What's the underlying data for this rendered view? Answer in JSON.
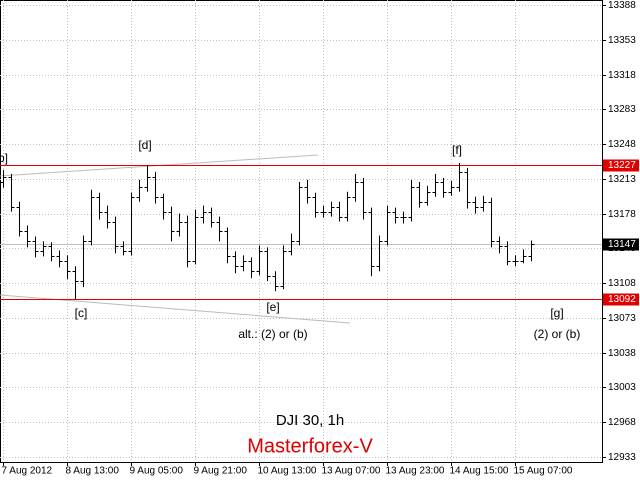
{
  "chart_data": {
    "type": "ohlc",
    "title": "DJI 30, 1h",
    "subtitle": "Masterforex-V",
    "categories": [
      "7 Aug 2012",
      null,
      null,
      null,
      null,
      null,
      null,
      null,
      "8 Aug 13:00",
      null,
      null,
      null,
      null,
      null,
      null,
      null,
      "9 Aug 05:00",
      null,
      null,
      null,
      null,
      null,
      null,
      null,
      "9 Aug 21:00",
      null,
      null,
      null,
      null,
      null,
      null,
      null,
      "10 Aug 13:00",
      null,
      null,
      null,
      null,
      null,
      null,
      null,
      "13 Aug 07:00",
      null,
      null,
      null,
      null,
      null,
      null,
      null,
      "13 Aug 23:00",
      null,
      null,
      null,
      null,
      null,
      null,
      null,
      "14 Aug 15:00",
      null,
      null,
      null,
      null,
      null,
      null,
      null,
      "15 Aug 07:00",
      null,
      null
    ],
    "open": [
      13210,
      13215,
      13185,
      13160,
      13150,
      13140,
      13145,
      13135,
      13130,
      13120,
      13110,
      13150,
      13195,
      13180,
      13170,
      13145,
      13140,
      13195,
      13205,
      13215,
      13195,
      13180,
      13160,
      13170,
      13130,
      13175,
      13180,
      13170,
      13160,
      13135,
      13125,
      13130,
      13120,
      13140,
      13115,
      13105,
      13140,
      13150,
      13205,
      13195,
      13180,
      13180,
      13185,
      13175,
      13195,
      13210,
      13180,
      13125,
      13150,
      13180,
      13175,
      13175,
      13205,
      13190,
      13200,
      13210,
      13200,
      13205,
      13220,
      13190,
      13185,
      13190,
      13150,
      13145,
      13130,
      13130,
      13135
    ],
    "high": [
      13222,
      13218,
      13190,
      13166,
      13155,
      13150,
      13149,
      13141,
      13136,
      13125,
      13156,
      13202,
      13199,
      13186,
      13175,
      13150,
      13199,
      13212,
      13227,
      13220,
      13198,
      13185,
      13178,
      13176,
      13182,
      13186,
      13184,
      13175,
      13164,
      13140,
      13136,
      13134,
      13146,
      13144,
      13120,
      13146,
      13158,
      13210,
      13212,
      13199,
      13186,
      13190,
      13190,
      13200,
      13218,
      13214,
      13184,
      13156,
      13186,
      13184,
      13180,
      13212,
      13210,
      13206,
      13218,
      13214,
      13211,
      13229,
      13224,
      13195,
      13196,
      13194,
      13155,
      13150,
      13136,
      13142,
      13151
    ],
    "low": [
      13204,
      13180,
      13155,
      13144,
      13134,
      13135,
      13130,
      13124,
      13112,
      13092,
      13104,
      13146,
      13172,
      13163,
      13138,
      13136,
      13136,
      13190,
      13200,
      13188,
      13172,
      13150,
      13155,
      13124,
      13127,
      13168,
      13164,
      13150,
      13128,
      13118,
      13120,
      13113,
      13116,
      13110,
      13100,
      13102,
      13136,
      13146,
      13188,
      13174,
      13174,
      13175,
      13170,
      13170,
      13190,
      13172,
      13115,
      13120,
      13146,
      13168,
      13168,
      13170,
      13184,
      13186,
      13195,
      13194,
      13196,
      13200,
      13183,
      13178,
      13180,
      13144,
      13138,
      13126,
      13125,
      13128,
      13130
    ],
    "close": [
      13215,
      13185,
      13160,
      13150,
      13140,
      13145,
      13135,
      13130,
      13120,
      13110,
      13150,
      13195,
      13180,
      13170,
      13145,
      13140,
      13195,
      13205,
      13215,
      13195,
      13180,
      13160,
      13170,
      13130,
      13175,
      13180,
      13170,
      13160,
      13135,
      13125,
      13130,
      13120,
      13140,
      13115,
      13105,
      13140,
      13150,
      13205,
      13195,
      13180,
      13180,
      13185,
      13175,
      13195,
      13210,
      13180,
      13125,
      13150,
      13180,
      13175,
      13175,
      13205,
      13190,
      13200,
      13210,
      13200,
      13205,
      13220,
      13190,
      13185,
      13190,
      13150,
      13145,
      13130,
      13130,
      13135,
      13147
    ],
    "color": "#000000",
    "ylim": [
      12928,
      13393
    ],
    "yticks": [
      13388,
      13353,
      13318,
      13283,
      13248,
      13213,
      13178,
      13143,
      13108,
      13073,
      13038,
      13003,
      12968,
      12933
    ],
    "grid": true,
    "levels": [
      {
        "value": 13227,
        "color": "#e00000"
      },
      {
        "value": 13092,
        "color": "#e00000"
      },
      {
        "value": 13147,
        "color": "#000000"
      }
    ],
    "annotations": [
      "b]",
      "[d]",
      "[f]",
      "[c]",
      "[e]",
      "[g]",
      "alt.: (2) or (b)",
      "(2) or (b)"
    ]
  }
}
